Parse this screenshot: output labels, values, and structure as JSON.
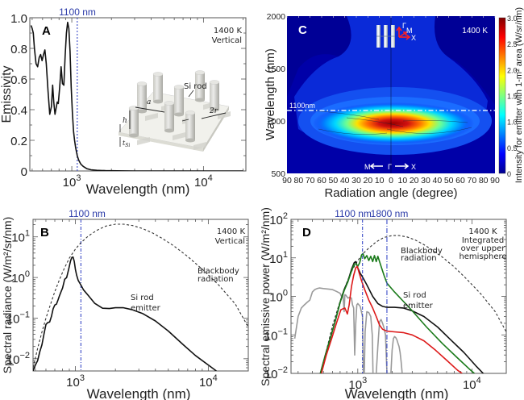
{
  "chart_data": [
    {
      "id": "A",
      "type": "line",
      "panel_letter": "A",
      "title": "",
      "xlabel": "Wavelength (nm)",
      "ylabel": "Emissivity",
      "xscale": "log",
      "xlim": [
        480,
        21000
      ],
      "ylim": [
        0,
        1.0
      ],
      "xticks": [
        {
          "value": 1000,
          "label": "10",
          "exp": "3"
        },
        {
          "value": 10000,
          "label": "10",
          "exp": "4"
        }
      ],
      "yticks": [
        {
          "value": 0,
          "label": "0"
        },
        {
          "value": 0.2,
          "label": "0.2"
        },
        {
          "value": 0.4,
          "label": "0.4"
        },
        {
          "value": 0.6,
          "label": "0.6"
        },
        {
          "value": 0.8,
          "label": "0.8"
        },
        {
          "value": 1.0,
          "label": "1.0"
        }
      ],
      "annotations": {
        "temp": "1400 K",
        "mode": "Vertical",
        "vline_label": "1100 nm",
        "vline_value": 1100
      },
      "inset_labels": {
        "rod": "Si rod",
        "a": "a",
        "h": "h",
        "r": "2r",
        "t": "t",
        "t_sub": "Si"
      },
      "series": [
        {
          "name": "Emissivity",
          "color": "#111111",
          "x": [
            490,
            500,
            510,
            520,
            535,
            550,
            565,
            580,
            595,
            610,
            625,
            640,
            660,
            680,
            700,
            715,
            730,
            745,
            760,
            775,
            790,
            810,
            830,
            850,
            870,
            890,
            910,
            930,
            950,
            970,
            990,
            1010,
            1030,
            1050,
            1070,
            1100,
            1130,
            1170,
            1220,
            1300,
            1400,
            1550,
            1800,
            2200,
            3000,
            5000,
            10000,
            20000
          ],
          "y": [
            0.95,
            0.93,
            0.9,
            0.8,
            0.7,
            0.68,
            0.74,
            0.76,
            0.72,
            0.76,
            0.79,
            0.7,
            0.52,
            0.37,
            0.42,
            0.56,
            0.45,
            0.37,
            0.41,
            0.45,
            0.44,
            0.55,
            0.68,
            0.57,
            0.56,
            0.75,
            0.9,
            0.97,
            0.93,
            0.78,
            0.55,
            0.38,
            0.26,
            0.2,
            0.15,
            0.1,
            0.07,
            0.045,
            0.03,
            0.015,
            0.008,
            0.004,
            0.002,
            0.001,
            0.0,
            0.0,
            0.0,
            0.0
          ]
        }
      ]
    },
    {
      "id": "B",
      "type": "line",
      "panel_letter": "B",
      "title": "",
      "xlabel": "Wavelength (nm)",
      "ylabel": "Spectral radiance (W/m²/sr/nm)",
      "xscale": "log",
      "yscale": "log",
      "xlim": [
        480,
        20000
      ],
      "ylim": [
        0.005,
        27
      ],
      "xticks": [
        {
          "value": 1000,
          "label": "10",
          "exp": "3"
        },
        {
          "value": 10000,
          "label": "10",
          "exp": "4"
        }
      ],
      "yticks": [
        {
          "value": 0.01,
          "label": "10",
          "exp": "−2"
        },
        {
          "value": 0.1,
          "label": "10",
          "exp": "−1"
        },
        {
          "value": 1,
          "label": "10",
          "exp": "0"
        },
        {
          "value": 10,
          "label": "10",
          "exp": "1"
        }
      ],
      "annotations": {
        "temp": "1400 K",
        "mode": "Vertical",
        "vline_label": "1100 nm",
        "vline_value": 1100,
        "bb_label_1": "Blackbody",
        "bb_label_2": "radiation",
        "emitter_label_1": "Si rod",
        "emitter_label_2": "emitter"
      },
      "series": [
        {
          "name": "Blackbody radiation",
          "color": "#333333",
          "dash": true,
          "x": [
            480,
            520,
            560,
            600,
            650,
            700,
            760,
            820,
            900,
            1000,
            1100,
            1250,
            1450,
            1700,
            2000,
            2300,
            2700,
            3200,
            3800,
            4500,
            5500,
            7000,
            9000,
            12000,
            16000,
            20000
          ],
          "y": [
            0.006,
            0.018,
            0.045,
            0.1,
            0.22,
            0.45,
            0.9,
            1.6,
            3.0,
            5.0,
            7.2,
            10.5,
            14.5,
            18.5,
            20.5,
            20.5,
            19.0,
            16.0,
            12.5,
            9.2,
            6.0,
            3.3,
            1.6,
            0.65,
            0.22,
            0.06
          ]
        },
        {
          "name": "Si rod emitter",
          "color": "#111111",
          "dash": false,
          "x": [
            480,
            500,
            520,
            540,
            560,
            580,
            600,
            620,
            640,
            660,
            680,
            700,
            720,
            740,
            760,
            780,
            800,
            830,
            860,
            890,
            920,
            940,
            960,
            980,
            1000,
            1020,
            1050,
            1100,
            1150,
            1250,
            1400,
            1600,
            1800,
            2000,
            2300,
            2700,
            3200,
            4000,
            5000,
            6500,
            8000,
            10000,
            11500
          ],
          "y": [
            0.005,
            0.007,
            0.009,
            0.015,
            0.022,
            0.04,
            0.07,
            0.078,
            0.08,
            0.11,
            0.17,
            0.21,
            0.22,
            0.28,
            0.36,
            0.45,
            0.55,
            0.9,
            1.0,
            1.6,
            2.6,
            3.1,
            3.2,
            2.5,
            1.6,
            1.15,
            0.85,
            0.65,
            0.5,
            0.36,
            0.23,
            0.175,
            0.172,
            0.18,
            0.18,
            0.16,
            0.13,
            0.085,
            0.048,
            0.022,
            0.012,
            0.007,
            0.005
          ]
        }
      ]
    },
    {
      "id": "C",
      "type": "heatmap",
      "panel_letter": "C",
      "title": "",
      "xlabel": "Radiation angle (degree)",
      "ylabel": "Wavelength (nm)",
      "xlim": [
        -90,
        90
      ],
      "ylim": [
        500,
        2000
      ],
      "xticks": [
        "90",
        "80",
        "70",
        "60",
        "50",
        "40",
        "30",
        "20",
        "10",
        "0",
        "10",
        "20",
        "30",
        "40",
        "50",
        "60",
        "70",
        "80",
        "90"
      ],
      "yticks": [
        {
          "value": 500,
          "label": "500"
        },
        {
          "value": 1000,
          "label": "1000"
        },
        {
          "value": 1500,
          "label": "1500"
        },
        {
          "value": 2000,
          "label": "2000"
        }
      ],
      "colorbar": {
        "label": "Intensity for emitter with 1-m² area  (W/sr/nm)",
        "min": 0,
        "max": 3.0,
        "ticks": [
          "0",
          "0.5",
          "1.0",
          "1.5",
          "2.0",
          "2.5",
          "3.0"
        ]
      },
      "annotations": {
        "temp": "1400 K",
        "hline_label": "1100nm",
        "hline_value": 1100,
        "left_dir": "M",
        "center_dir": "Γ",
        "right_dir": "X",
        "axes_gamma": "Γ",
        "axes_m": "M",
        "axes_x": "X"
      },
      "hotspot": {
        "angle_center": 0,
        "wavelength_center": 975,
        "peak_intensity": 3.0,
        "angle_halfwidth": 65,
        "wavelength_halfwidth": 130
      }
    },
    {
      "id": "D",
      "type": "line",
      "panel_letter": "D",
      "title": "",
      "xlabel": "Wavelength (nm)",
      "ylabel": "Spectral emissive power (W/m²/nm)",
      "xscale": "log",
      "yscale": "log",
      "xlim": [
        260,
        20000
      ],
      "ylim": [
        0.01,
        100
      ],
      "xticks": [
        {
          "value": 1000,
          "label": "10",
          "exp": "3"
        },
        {
          "value": 10000,
          "label": "10",
          "exp": "4"
        }
      ],
      "yticks": [
        {
          "value": 0.01,
          "label": "10",
          "exp": "−2"
        },
        {
          "value": 0.1,
          "label": "10",
          "exp": "−1"
        },
        {
          "value": 1,
          "label": "10",
          "exp": "0"
        },
        {
          "value": 10,
          "label": "10",
          "exp": "1"
        },
        {
          "value": 100,
          "label": "10",
          "exp": "2"
        }
      ],
      "annotations": {
        "temp": "1400 K",
        "mode_1": "Integrated",
        "mode_2": "over upper",
        "mode_3": "hemisphere",
        "vline1_label": "1100 nm",
        "vline1_value": 1100,
        "vline2_label": "1800 nm",
        "vline2_value": 1800,
        "bb_label_1": "Blackbody",
        "bb_label_2": "radiation",
        "emitter_label_1": "Si rod",
        "emitter_label_2": "emitter"
      },
      "series": [
        {
          "name": "Blackbody radiation",
          "color": "#333333",
          "dash": true,
          "x": [
            480,
            520,
            560,
            600,
            650,
            700,
            760,
            820,
            900,
            1000,
            1100,
            1250,
            1450,
            1700,
            2000,
            2300,
            2700,
            3200,
            3800,
            4500,
            5500,
            7000,
            9000,
            12000,
            16000,
            20000
          ],
          "y": [
            0.01,
            0.03,
            0.075,
            0.17,
            0.37,
            0.75,
            1.5,
            2.7,
            5.0,
            8.5,
            12.5,
            18,
            26,
            34,
            38,
            38,
            35,
            29,
            22,
            16,
            10.5,
            5.8,
            2.8,
            1.15,
            0.4,
            0.12
          ]
        },
        {
          "name": "Si rod emitter (black)",
          "color": "#111111",
          "dash": false,
          "x": [
            470,
            520,
            580,
            640,
            700,
            760,
            820,
            880,
            930,
            960,
            1000,
            1050,
            1100,
            1200,
            1350,
            1500,
            1650,
            1800,
            2100,
            2500,
            3000,
            3800,
            5000,
            6500,
            8500,
            11000,
            13500
          ],
          "y": [
            0.01,
            0.03,
            0.09,
            0.25,
            0.7,
            1.5,
            2.5,
            5.0,
            7.5,
            8.0,
            5.5,
            4.0,
            3.2,
            2.0,
            1.0,
            0.65,
            0.55,
            0.52,
            0.52,
            0.5,
            0.42,
            0.3,
            0.16,
            0.075,
            0.035,
            0.015,
            0.008
          ]
        },
        {
          "name": "Green curve",
          "color": "#1a7a1a",
          "dash": false,
          "x": [
            470,
            520,
            580,
            640,
            700,
            760,
            820,
            880,
            930,
            970,
            1000,
            1040,
            1080,
            1110,
            1150,
            1200,
            1250,
            1300,
            1350,
            1400,
            1450,
            1500,
            1550,
            1600,
            1700,
            1800,
            2100,
            2500,
            3000,
            4000,
            5500,
            7500,
            9500,
            10500
          ],
          "y": [
            0.01,
            0.03,
            0.09,
            0.25,
            0.7,
            1.4,
            2.4,
            4.5,
            6.8,
            7.0,
            6.0,
            7.5,
            12.0,
            13.0,
            9.5,
            11.5,
            8.5,
            11.0,
            8.0,
            11.5,
            8.0,
            11.0,
            8.0,
            6.0,
            3.5,
            2.2,
            1.3,
            0.75,
            0.42,
            0.16,
            0.06,
            0.025,
            0.013,
            0.01
          ]
        },
        {
          "name": "Red curve",
          "color": "#dd1a1a",
          "dash": false,
          "x": [
            480,
            530,
            590,
            650,
            710,
            770,
            810,
            840,
            880,
            920,
            960,
            990,
            1030,
            1080,
            1150,
            1250,
            1350,
            1450,
            1550,
            1650,
            1800,
            2100,
            2500,
            3000,
            3800,
            4800,
            6000,
            7500,
            8200
          ],
          "y": [
            0.01,
            0.03,
            0.08,
            0.2,
            0.45,
            0.5,
            0.35,
            0.6,
            1.8,
            3.5,
            5.5,
            6.0,
            4.0,
            2.5,
            1.5,
            0.8,
            0.5,
            0.3,
            0.18,
            0.14,
            0.125,
            0.12,
            0.115,
            0.1,
            0.07,
            0.04,
            0.022,
            0.012,
            0.01
          ]
        },
        {
          "name": "Solar spectrum",
          "color": "#9a9a9a",
          "dash": false,
          "x": [
            280,
            300,
            320,
            340,
            360,
            380,
            400,
            420,
            440,
            460,
            500,
            550,
            600,
            650,
            700,
            720,
            740,
            760,
            770,
            780,
            800,
            820,
            850,
            880,
            900,
            920,
            940,
            960,
            980,
            1000,
            1050,
            1100,
            1120,
            1140,
            1160,
            1200,
            1250,
            1300,
            1340,
            1360,
            1380,
            1400,
            1450,
            1500,
            1550,
            1600,
            1650,
            1700,
            1750,
            1800,
            1820,
            1850,
            1900,
            1950,
            2000,
            2050,
            2100,
            2150,
            2200,
            2250,
            2300,
            2350,
            2400,
            2450,
            2500
          ],
          "y": [
            0.08,
            0.3,
            0.5,
            0.6,
            0.7,
            0.8,
            1.3,
            1.5,
            1.6,
            1.65,
            1.6,
            1.55,
            1.5,
            1.35,
            1.2,
            1.0,
            1.2,
            0.4,
            1.1,
            1.1,
            1.0,
            0.9,
            0.95,
            0.9,
            0.6,
            0.5,
            0.03,
            0.2,
            0.6,
            0.65,
            0.55,
            0.3,
            0.01,
            0.01,
            0.12,
            0.4,
            0.38,
            0.3,
            0.1,
            0.01,
            0.01,
            0.01,
            0.01,
            0.05,
            0.22,
            0.25,
            0.2,
            0.15,
            0.1,
            0.01,
            0.01,
            0.01,
            0.01,
            0.01,
            0.04,
            0.08,
            0.09,
            0.085,
            0.075,
            0.06,
            0.05,
            0.035,
            0.02,
            0.01,
            0.01
          ]
        }
      ]
    }
  ]
}
